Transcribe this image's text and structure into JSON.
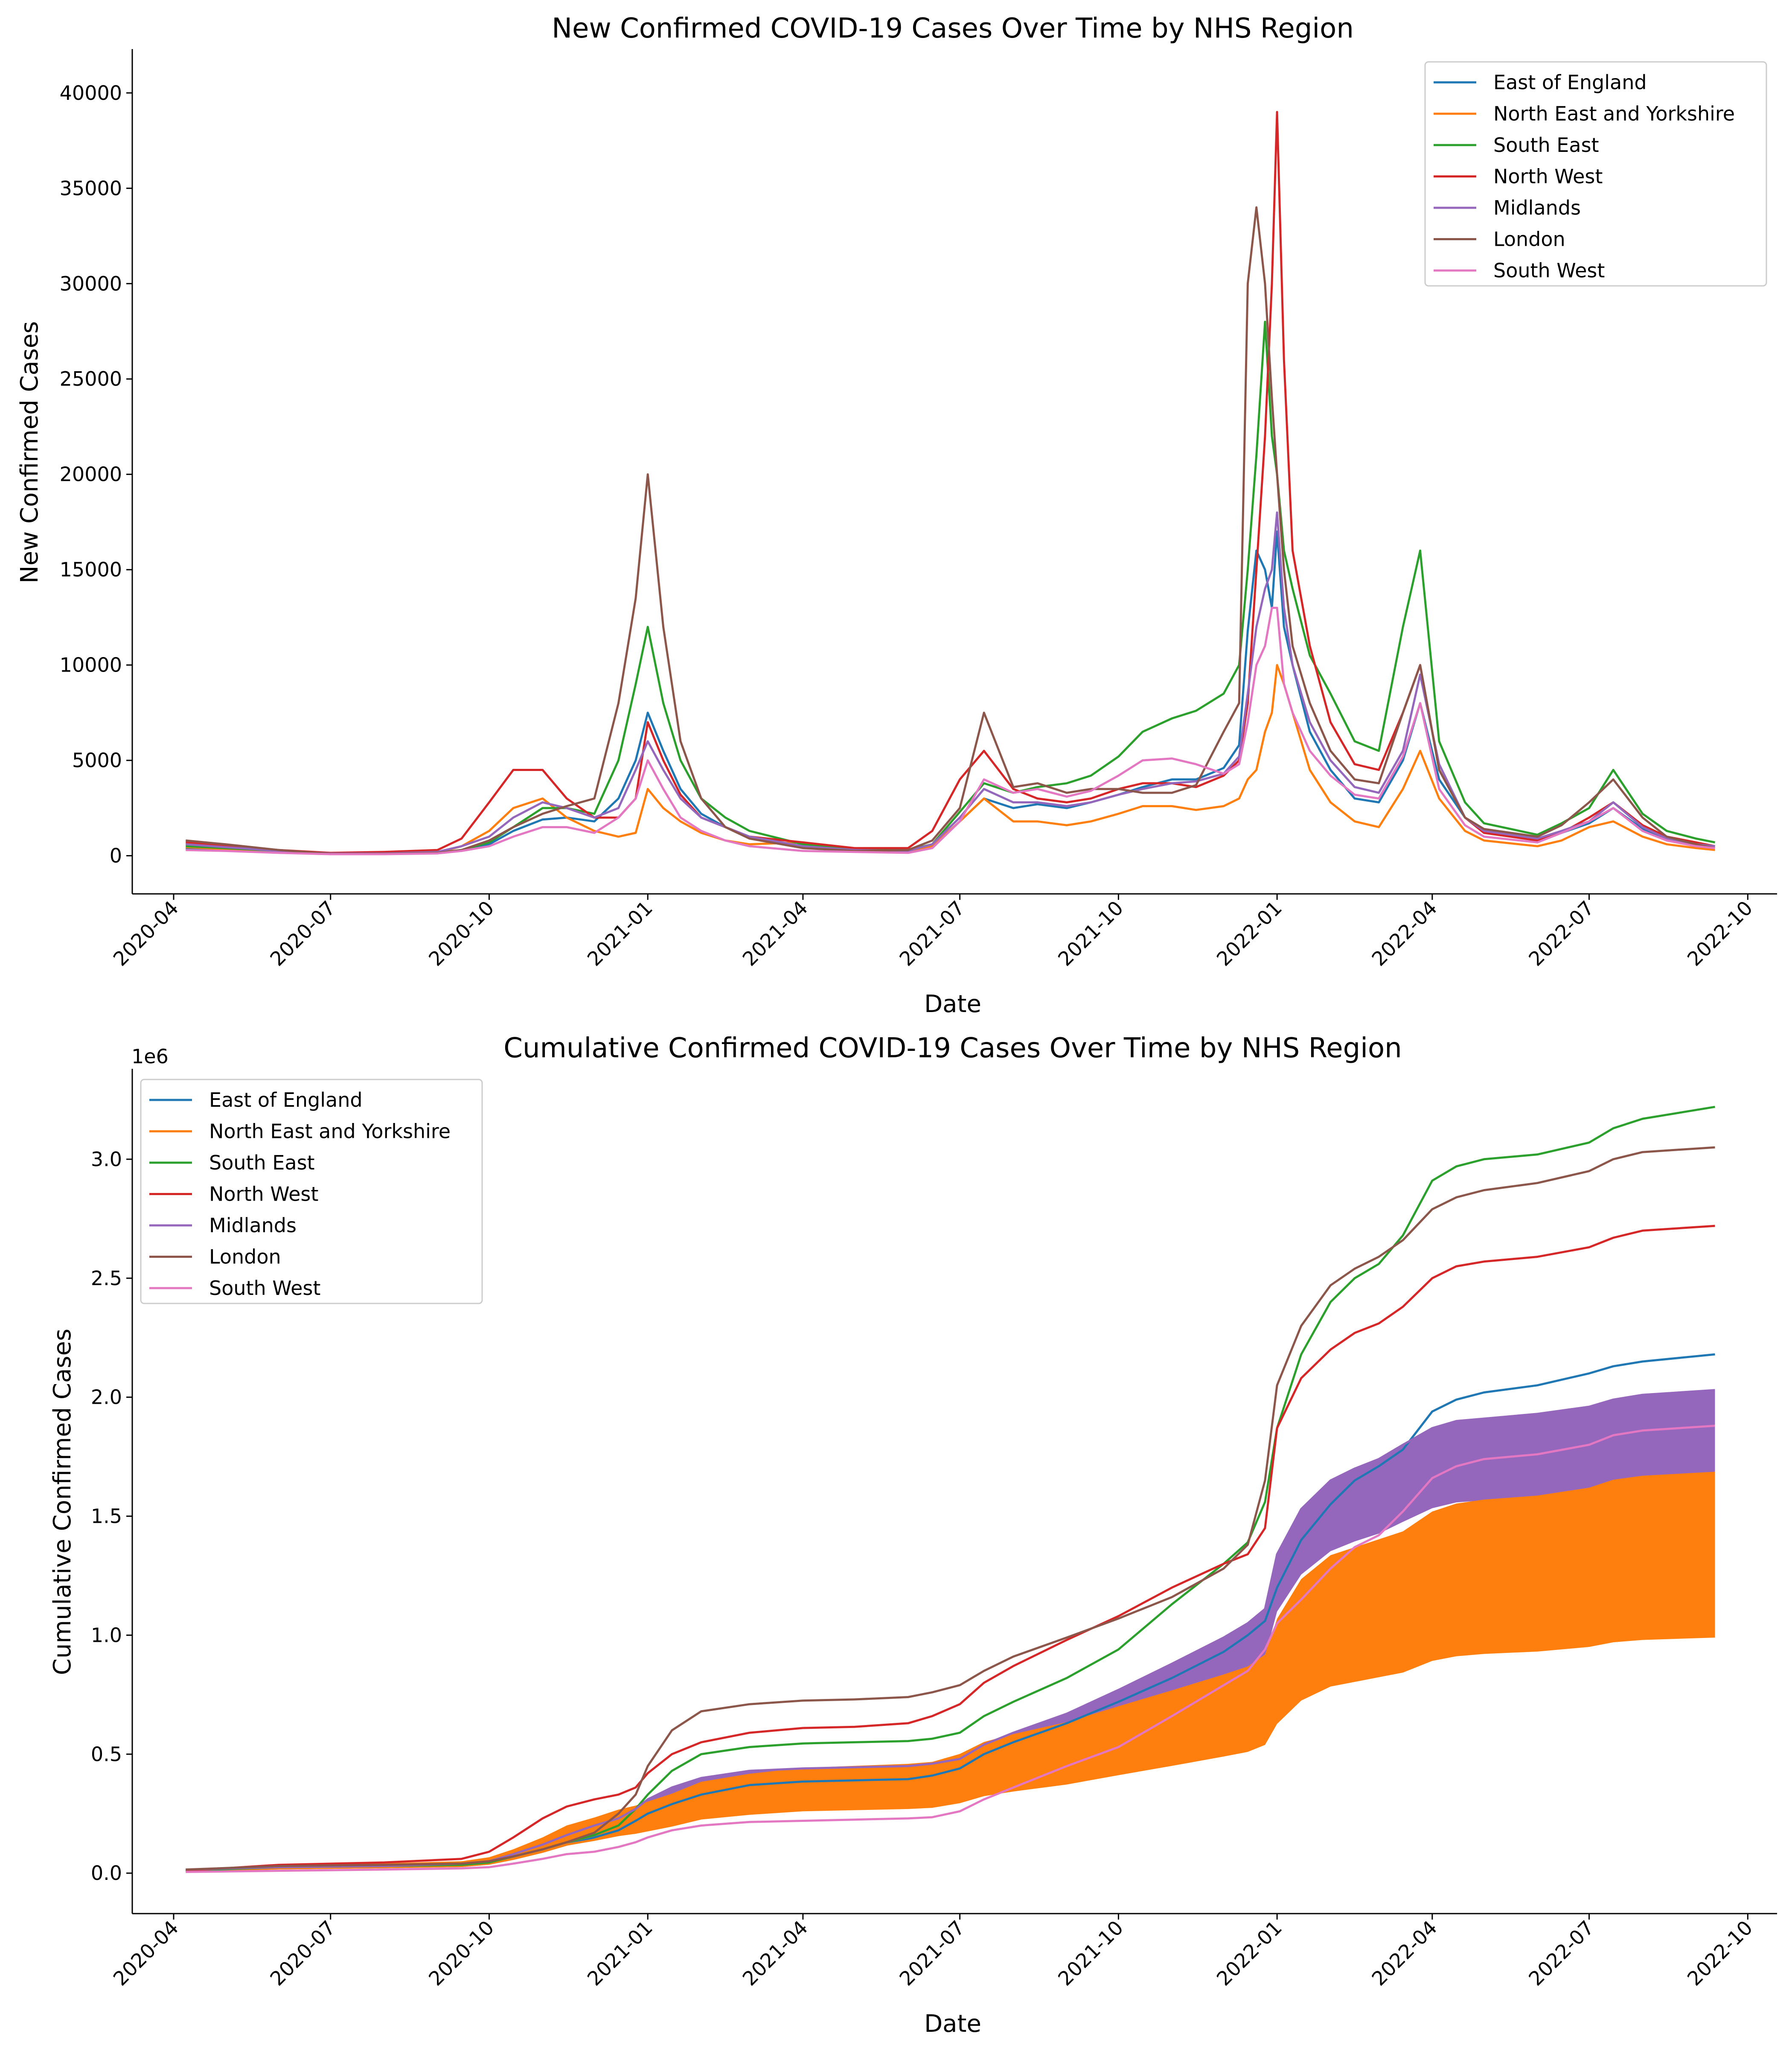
{
  "chart_data": [
    {
      "type": "line",
      "title": "New Confirmed COVID-19 Cases Over Time by NHS Region",
      "xlabel": "Date",
      "ylabel": "New Confirmed Cases",
      "x_ticks": [
        "2020-04",
        "2020-07",
        "2020-10",
        "2021-01",
        "2021-04",
        "2021-07",
        "2021-10",
        "2022-01",
        "2022-04",
        "2022-07",
        "2022-10"
      ],
      "y_ticks": [
        0,
        5000,
        10000,
        15000,
        20000,
        25000,
        30000,
        35000,
        40000
      ],
      "y_tick_labels": [
        "0",
        "5000",
        "10000",
        "15000",
        "20000",
        "25000",
        "30000",
        "35000",
        "40000"
      ],
      "xlim": [
        "2020-03-08",
        "2022-10-18"
      ],
      "ylim": [
        -2000,
        42300
      ],
      "grid": false,
      "legend_position": "upper right",
      "x": [
        "2020-04-08",
        "2020-05-01",
        "2020-06-01",
        "2020-07-01",
        "2020-08-01",
        "2020-09-01",
        "2020-09-15",
        "2020-10-01",
        "2020-10-15",
        "2020-11-01",
        "2020-11-15",
        "2020-12-01",
        "2020-12-15",
        "2020-12-25",
        "2021-01-01",
        "2021-01-10",
        "2021-01-20",
        "2021-02-01",
        "2021-02-15",
        "2021-03-01",
        "2021-04-01",
        "2021-05-01",
        "2021-06-01",
        "2021-06-15",
        "2021-07-01",
        "2021-07-15",
        "2021-08-01",
        "2021-08-15",
        "2021-09-01",
        "2021-09-15",
        "2021-10-01",
        "2021-10-15",
        "2021-11-01",
        "2021-11-15",
        "2021-12-01",
        "2021-12-10",
        "2021-12-15",
        "2021-12-20",
        "2021-12-25",
        "2021-12-29",
        "2022-01-01",
        "2022-01-05",
        "2022-01-10",
        "2022-01-20",
        "2022-02-01",
        "2022-02-15",
        "2022-03-01",
        "2022-03-15",
        "2022-03-25",
        "2022-04-05",
        "2022-04-20",
        "2022-05-01",
        "2022-06-01",
        "2022-06-15",
        "2022-07-01",
        "2022-07-15",
        "2022-08-01",
        "2022-08-15",
        "2022-09-01",
        "2022-09-12"
      ],
      "series": [
        {
          "name": "East of England",
          "color": "#1f77b4",
          "values": [
            400,
            350,
            200,
            100,
            100,
            150,
            300,
            600,
            1300,
            1900,
            2000,
            1800,
            3000,
            5000,
            7500,
            5500,
            3500,
            2200,
            1500,
            1000,
            500,
            300,
            250,
            500,
            1800,
            3000,
            2500,
            2700,
            2500,
            2800,
            3200,
            3600,
            4000,
            4000,
            4600,
            5800,
            11800,
            16000,
            15000,
            13000,
            17000,
            12000,
            10000,
            6500,
            4500,
            3000,
            2800,
            5000,
            8000,
            4000,
            2000,
            1300,
            800,
            1200,
            1700,
            2500,
            1400,
            900,
            600,
            500
          ]
        },
        {
          "name": "North East and Yorkshire",
          "color": "#ff7f0e",
          "values": [
            450,
            350,
            200,
            100,
            100,
            150,
            500,
            1300,
            2500,
            3000,
            2000,
            1300,
            1000,
            1200,
            3500,
            2500,
            1800,
            1200,
            800,
            600,
            700,
            350,
            250,
            500,
            1800,
            3000,
            1800,
            1800,
            1600,
            1800,
            2200,
            2600,
            2600,
            2400,
            2600,
            3000,
            4000,
            4500,
            6500,
            7500,
            10000,
            9000,
            7500,
            4500,
            2800,
            1800,
            1500,
            3500,
            5500,
            3000,
            1300,
            800,
            500,
            800,
            1500,
            1800,
            1000,
            600,
            400,
            300
          ]
        },
        {
          "name": "South East",
          "color": "#2ca02c",
          "values": [
            500,
            400,
            250,
            100,
            100,
            150,
            300,
            700,
            1500,
            2500,
            2500,
            2200,
            5000,
            9000,
            12000,
            8000,
            5000,
            3000,
            2000,
            1300,
            600,
            350,
            300,
            600,
            2300,
            3800,
            3300,
            3600,
            3800,
            4200,
            5200,
            6500,
            7200,
            7600,
            8500,
            10000,
            15000,
            21000,
            28000,
            22000,
            20000,
            16000,
            14000,
            10500,
            8500,
            6000,
            5500,
            12000,
            16000,
            6000,
            2800,
            1700,
            1100,
            1700,
            2500,
            4500,
            2200,
            1300,
            900,
            700
          ]
        },
        {
          "name": "North West",
          "color": "#d62728",
          "values": [
            700,
            500,
            300,
            150,
            200,
            300,
            900,
            2800,
            4500,
            4500,
            3000,
            2000,
            2000,
            3000,
            7000,
            5000,
            3200,
            2000,
            1500,
            1000,
            700,
            400,
            400,
            1300,
            4000,
            5500,
            3500,
            3000,
            2800,
            3000,
            3500,
            3800,
            3800,
            3600,
            4200,
            5000,
            8000,
            15000,
            22000,
            30000,
            39000,
            26000,
            16000,
            11000,
            7000,
            4800,
            4500,
            7500,
            10000,
            4500,
            2000,
            1200,
            800,
            1200,
            2000,
            2800,
            1600,
            1000,
            700,
            500
          ]
        },
        {
          "name": "Midlands",
          "color": "#9467bd",
          "values": [
            600,
            450,
            250,
            120,
            120,
            200,
            500,
            1000,
            2000,
            2800,
            2500,
            2000,
            2500,
            4500,
            6000,
            4500,
            3000,
            2000,
            1500,
            1000,
            500,
            300,
            250,
            600,
            2000,
            3500,
            2800,
            2800,
            2600,
            2800,
            3200,
            3500,
            3800,
            3900,
            4300,
            5200,
            8500,
            12000,
            14000,
            15000,
            18000,
            13000,
            10000,
            7000,
            5000,
            3600,
            3300,
            5500,
            9500,
            4800,
            2000,
            1300,
            900,
            1300,
            1800,
            2800,
            1500,
            900,
            600,
            500
          ]
        },
        {
          "name": "London",
          "color": "#8c564b",
          "values": [
            800,
            600,
            300,
            100,
            100,
            150,
            300,
            800,
            1500,
            2200,
            2600,
            3000,
            8000,
            13500,
            20000,
            12000,
            6000,
            3000,
            1500,
            900,
            400,
            250,
            300,
            800,
            2500,
            7500,
            3600,
            3800,
            3300,
            3500,
            3500,
            3300,
            3300,
            3700,
            6500,
            8000,
            30000,
            34000,
            30000,
            24000,
            20000,
            15000,
            11000,
            8000,
            5500,
            4000,
            3800,
            7500,
            10000,
            4500,
            2000,
            1400,
            1000,
            1600,
            2800,
            4000,
            2000,
            1000,
            600,
            400
          ]
        },
        {
          "name": "South West",
          "color": "#e377c2",
          "values": [
            300,
            250,
            150,
            80,
            80,
            120,
            250,
            500,
            1000,
            1500,
            1500,
            1200,
            2000,
            3000,
            5000,
            3500,
            2000,
            1300,
            800,
            500,
            250,
            200,
            150,
            400,
            1800,
            4000,
            3300,
            3500,
            3100,
            3400,
            4200,
            5000,
            5100,
            4800,
            4300,
            4800,
            7000,
            10000,
            11000,
            13000,
            13000,
            9000,
            7500,
            5500,
            4200,
            3200,
            3000,
            5200,
            8000,
            3500,
            1600,
            1000,
            700,
            1200,
            1800,
            2500,
            1300,
            800,
            500,
            400
          ]
        }
      ]
    },
    {
      "type": "line",
      "title": "Cumulative Confirmed COVID-19 Cases Over Time by NHS Region",
      "xlabel": "Date",
      "ylabel": "Cumulative Confirmed Cases",
      "y_offset_label": "1e6",
      "x_ticks": [
        "2020-04",
        "2020-07",
        "2020-10",
        "2021-01",
        "2021-04",
        "2021-07",
        "2021-10",
        "2022-01",
        "2022-04",
        "2022-07",
        "2022-10"
      ],
      "y_ticks": [
        0,
        0.5,
        1.0,
        1.5,
        2.0,
        2.5,
        3.0
      ],
      "y_tick_labels": [
        "0.0",
        "0.5",
        "1.0",
        "1.5",
        "2.0",
        "2.5",
        "3.0"
      ],
      "xlim": [
        "2020-03-08",
        "2022-10-18"
      ],
      "ylim": [
        -0.17,
        3.38
      ],
      "grid": false,
      "legend_position": "upper left",
      "notes_visual": "North East and Yorkshire and Midlands appear as filled bands (orange, purple) above their lines",
      "x": [
        "2020-04-08",
        "2020-06-01",
        "2020-08-01",
        "2020-09-15",
        "2020-10-01",
        "2020-10-15",
        "2020-11-01",
        "2020-11-15",
        "2020-12-01",
        "2020-12-15",
        "2020-12-25",
        "2021-01-01",
        "2021-01-15",
        "2021-02-01",
        "2021-03-01",
        "2021-04-01",
        "2021-05-01",
        "2021-06-01",
        "2021-06-15",
        "2021-07-01",
        "2021-07-15",
        "2021-08-01",
        "2021-09-01",
        "2021-10-01",
        "2021-11-01",
        "2021-12-01",
        "2021-12-15",
        "2021-12-25",
        "2022-01-01",
        "2022-01-15",
        "2022-02-01",
        "2022-02-15",
        "2022-03-01",
        "2022-03-15",
        "2022-04-01",
        "2022-04-15",
        "2022-05-01",
        "2022-06-01",
        "2022-07-01",
        "2022-07-15",
        "2022-08-01",
        "2022-09-12"
      ],
      "series": [
        {
          "name": "East of England",
          "color": "#1f77b4",
          "values": [
            0.01,
            0.02,
            0.025,
            0.03,
            0.04,
            0.06,
            0.09,
            0.12,
            0.15,
            0.18,
            0.22,
            0.25,
            0.29,
            0.33,
            0.37,
            0.385,
            0.39,
            0.395,
            0.41,
            0.44,
            0.5,
            0.55,
            0.63,
            0.72,
            0.82,
            0.93,
            1.0,
            1.06,
            1.2,
            1.4,
            1.55,
            1.65,
            1.71,
            1.78,
            1.94,
            1.99,
            2.02,
            2.05,
            2.1,
            2.13,
            2.15,
            2.18
          ]
        },
        {
          "name": "North East and Yorkshire",
          "color": "#ff7f0e",
          "values": [
            0.01,
            0.02,
            0.025,
            0.03,
            0.04,
            0.06,
            0.09,
            0.12,
            0.14,
            0.16,
            0.17,
            0.18,
            0.2,
            0.23,
            0.25,
            0.265,
            0.27,
            0.275,
            0.28,
            0.3,
            0.33,
            0.35,
            0.38,
            0.42,
            0.46,
            0.5,
            0.52,
            0.55,
            0.64,
            0.74,
            0.8,
            0.82,
            0.84,
            0.86,
            0.91,
            0.93,
            0.94,
            0.95,
            0.97,
            0.99,
            1.0,
            1.01
          ]
        },
        {
          "name": "South East",
          "color": "#2ca02c",
          "values": [
            0.01,
            0.025,
            0.03,
            0.035,
            0.045,
            0.07,
            0.1,
            0.13,
            0.16,
            0.2,
            0.27,
            0.33,
            0.43,
            0.5,
            0.53,
            0.545,
            0.55,
            0.555,
            0.565,
            0.59,
            0.66,
            0.72,
            0.82,
            0.94,
            1.13,
            1.3,
            1.39,
            1.56,
            1.87,
            2.18,
            2.4,
            2.5,
            2.56,
            2.68,
            2.91,
            2.97,
            3.0,
            3.02,
            3.07,
            3.13,
            3.17,
            3.22
          ]
        },
        {
          "name": "North West",
          "color": "#d62728",
          "values": [
            0.01,
            0.035,
            0.045,
            0.06,
            0.09,
            0.15,
            0.23,
            0.28,
            0.31,
            0.33,
            0.36,
            0.42,
            0.5,
            0.55,
            0.59,
            0.61,
            0.615,
            0.63,
            0.66,
            0.71,
            0.8,
            0.87,
            0.98,
            1.08,
            1.2,
            1.3,
            1.34,
            1.45,
            1.87,
            2.08,
            2.2,
            2.27,
            2.31,
            2.38,
            2.5,
            2.55,
            2.57,
            2.59,
            2.63,
            2.67,
            2.7,
            2.72
          ]
        },
        {
          "name": "Midlands",
          "color": "#9467bd",
          "values": [
            0.015,
            0.025,
            0.03,
            0.04,
            0.05,
            0.08,
            0.12,
            0.16,
            0.2,
            0.23,
            0.27,
            0.31,
            0.36,
            0.4,
            0.43,
            0.44,
            0.445,
            0.45,
            0.46,
            0.48,
            0.54,
            0.59,
            0.67,
            0.77,
            0.88,
            0.99,
            1.05,
            1.11,
            1.34,
            1.53,
            1.65,
            1.7,
            1.74,
            1.8,
            1.87,
            1.9,
            1.91,
            1.93,
            1.96,
            1.99,
            2.01,
            2.03
          ]
        },
        {
          "name": "London",
          "color": "#8c564b",
          "values": [
            0.015,
            0.03,
            0.035,
            0.04,
            0.05,
            0.07,
            0.1,
            0.13,
            0.17,
            0.25,
            0.33,
            0.45,
            0.6,
            0.68,
            0.71,
            0.725,
            0.73,
            0.74,
            0.76,
            0.79,
            0.85,
            0.91,
            0.99,
            1.07,
            1.16,
            1.28,
            1.38,
            1.65,
            2.05,
            2.3,
            2.47,
            2.54,
            2.59,
            2.66,
            2.79,
            2.84,
            2.87,
            2.9,
            2.95,
            3.0,
            3.03,
            3.05
          ]
        },
        {
          "name": "South West",
          "color": "#e377c2",
          "values": [
            0.005,
            0.01,
            0.015,
            0.02,
            0.025,
            0.04,
            0.06,
            0.08,
            0.09,
            0.11,
            0.13,
            0.15,
            0.18,
            0.2,
            0.215,
            0.22,
            0.225,
            0.23,
            0.235,
            0.26,
            0.31,
            0.36,
            0.45,
            0.53,
            0.66,
            0.79,
            0.85,
            0.94,
            1.05,
            1.15,
            1.28,
            1.37,
            1.42,
            1.52,
            1.66,
            1.71,
            1.74,
            1.76,
            1.8,
            1.84,
            1.86,
            1.88
          ]
        }
      ]
    }
  ]
}
